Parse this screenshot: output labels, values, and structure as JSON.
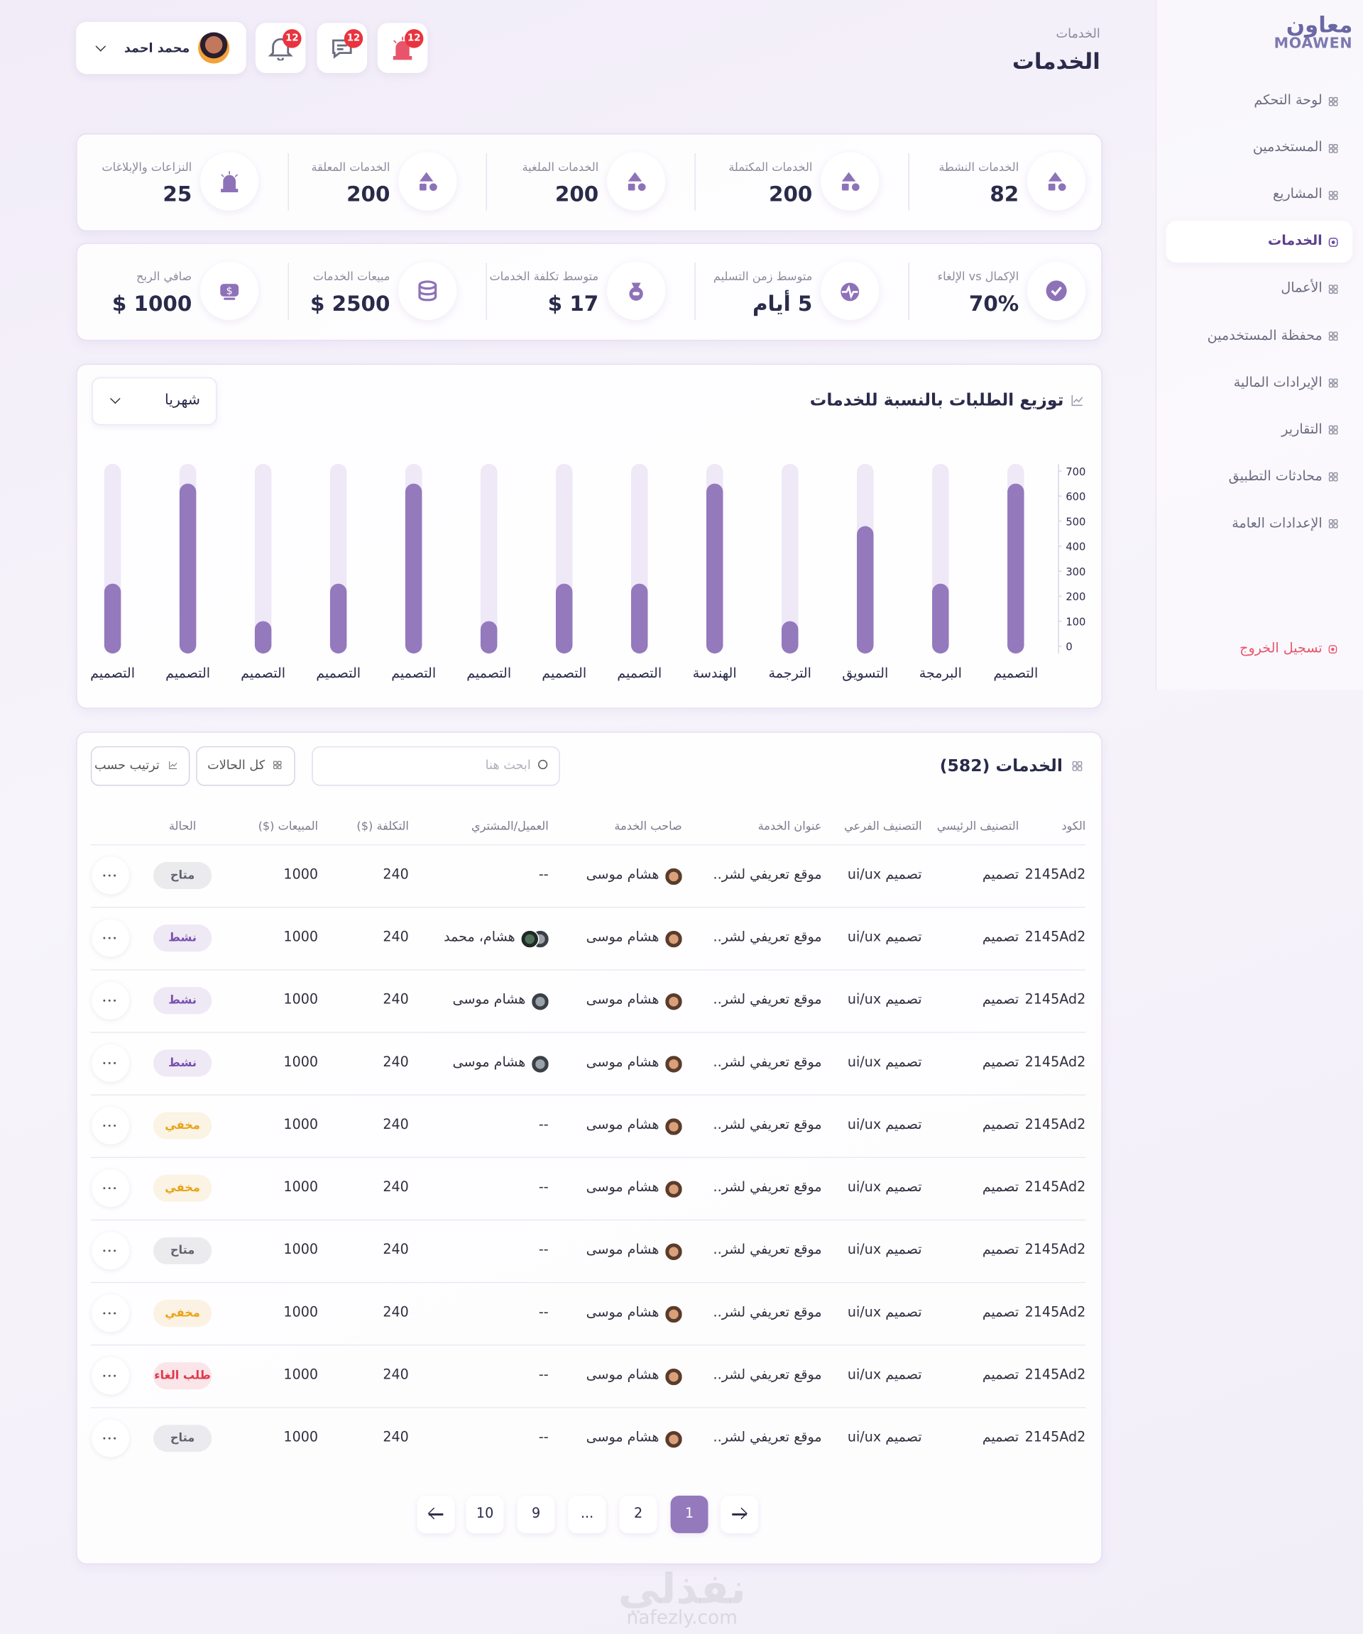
{
  "sidebar": {
    "logo": {
      "arabic": "معاون",
      "latin": "MOAWEN"
    },
    "menu": [
      "لوحة التحكم",
      "المستخدمين",
      "المشاريع",
      "الخدمات",
      "الأعمال",
      "محفظة المستخدمين",
      "الإيرادات المالية",
      "التقارير",
      "محادثات التطبيق",
      "الإعدادات العامة"
    ],
    "logout": "تسجيل الخروج"
  },
  "header": {
    "breadcrumb": "الخدمات",
    "title": "الخدمات",
    "badges": [
      12,
      12,
      12
    ],
    "user": "محمد احمد"
  },
  "stats": [
    {
      "label": "الخدمات النشطة",
      "value": 82
    },
    {
      "label": "الخدمات المكتملة",
      "value": 200
    },
    {
      "label": "الخدمات الملغية",
      "value": 200
    },
    {
      "label": "الخدمات المعلقة",
      "value": 200
    },
    {
      "label": "النزاعات والإبلاغات",
      "value": 25
    }
  ],
  "kpis": [
    {
      "label": "الإكمال vs الإلغاء",
      "value": "70%"
    },
    {
      "label": "متوسط زمن التسليم",
      "value": "5 أيام"
    },
    {
      "label": "متوسط تكلفة الخدمات",
      "value": "$ 17"
    },
    {
      "label": "مبيعات الخدمات",
      "value": "$ 2500"
    },
    {
      "label": "صافي الربح",
      "value": "$ 1000"
    }
  ],
  "chart_data": {
    "type": "bar",
    "title": "توزيع الطلبات بالنسبة للخدمات",
    "period": "شهريا",
    "categories": [
      "التصميم",
      "البرمجة",
      "التسويق",
      "الترجمة",
      "الهندسة",
      "التصميم",
      "التصميم",
      "التصميم",
      "التصميم",
      "التصميم",
      "التصميم",
      "التصميم",
      "التصميم"
    ],
    "values": [
      650,
      250,
      480,
      100,
      650,
      250,
      250,
      100,
      650,
      250,
      100,
      650,
      250
    ],
    "color": "#9479bd",
    "track_color": "#efe8f7",
    "ylim": [
      0,
      700
    ],
    "yticks": [
      0,
      100,
      200,
      300,
      400,
      500,
      600,
      700
    ]
  },
  "table": {
    "title": "الخدمات (582)",
    "search_placeholder": "ابحث هنا",
    "filter": "كل الحالات",
    "sort": "ترتيب حسب",
    "columns": [
      "الكود",
      "التصنيف الرئيسي",
      "التصنيف الفرعي",
      "عنوان الخدمة",
      "صاحب الخدمة",
      "العميل/المشتري",
      "التكلفة ($)",
      "المبيعات ($)",
      "الحالة"
    ],
    "rows": [
      {
        "code": "2145Ad2",
        "main": "تصميم",
        "sub": "تصميم ui/ux",
        "title": "موقع تعريفي لشر..",
        "owner": "هشام موسى",
        "client": "--",
        "cost": 240,
        "sales": 1000,
        "status": "متاح",
        "status_color": "#5f6170"
      },
      {
        "code": "2145Ad2",
        "main": "تصميم",
        "sub": "تصميم ui/ux",
        "title": "موقع تعريفي لشر..",
        "owner": "هشام موسى",
        "client": "هشام، محمد",
        "cost": 240,
        "sales": 1000,
        "status": "نشط",
        "status_color": "#7a4fb0"
      },
      {
        "code": "2145Ad2",
        "main": "تصميم",
        "sub": "تصميم ui/ux",
        "title": "موقع تعريفي لشر..",
        "owner": "هشام موسى",
        "client": "هشام موسى",
        "cost": 240,
        "sales": 1000,
        "status": "نشط",
        "status_color": "#7a4fb0"
      },
      {
        "code": "2145Ad2",
        "main": "تصميم",
        "sub": "تصميم ui/ux",
        "title": "موقع تعريفي لشر..",
        "owner": "هشام موسى",
        "client": "هشام موسى",
        "cost": 240,
        "sales": 1000,
        "status": "نشط",
        "status_color": "#7a4fb0"
      },
      {
        "code": "2145Ad2",
        "main": "تصميم",
        "sub": "تصميم ui/ux",
        "title": "موقع تعريفي لشر..",
        "owner": "هشام موسى",
        "client": "--",
        "cost": 240,
        "sales": 1000,
        "status": "مخفي",
        "status_color": "#e8a317"
      },
      {
        "code": "2145Ad2",
        "main": "تصميم",
        "sub": "تصميم ui/ux",
        "title": "موقع تعريفي لشر..",
        "owner": "هشام موسى",
        "client": "--",
        "cost": 240,
        "sales": 1000,
        "status": "مخفي",
        "status_color": "#e8a317"
      },
      {
        "code": "2145Ad2",
        "main": "تصميم",
        "sub": "تصميم ui/ux",
        "title": "موقع تعريفي لشر..",
        "owner": "هشام موسى",
        "client": "--",
        "cost": 240,
        "sales": 1000,
        "status": "متاح",
        "status_color": "#5f6170"
      },
      {
        "code": "2145Ad2",
        "main": "تصميم",
        "sub": "تصميم ui/ux",
        "title": "موقع تعريفي لشر..",
        "owner": "هشام موسى",
        "client": "--",
        "cost": 240,
        "sales": 1000,
        "status": "مخفي",
        "status_color": "#e8a317"
      },
      {
        "code": "2145Ad2",
        "main": "تصميم",
        "sub": "تصميم ui/ux",
        "title": "موقع تعريفي لشر..",
        "owner": "هشام موسى",
        "client": "--",
        "cost": 240,
        "sales": 1000,
        "status": "طلب الغاء",
        "status_color": "#e0394b"
      },
      {
        "code": "2145Ad2",
        "main": "تصميم",
        "sub": "تصميم ui/ux",
        "title": "موقع تعريفي لشر..",
        "owner": "هشام موسى",
        "client": "--",
        "cost": 240,
        "sales": 1000,
        "status": "متاح",
        "status_color": "#5f6170"
      }
    ]
  },
  "pagination": {
    "pages": [
      1,
      2,
      "...",
      9,
      10
    ]
  },
  "watermark": {
    "logo": "نفذلي",
    "site": "nafezly.com"
  }
}
